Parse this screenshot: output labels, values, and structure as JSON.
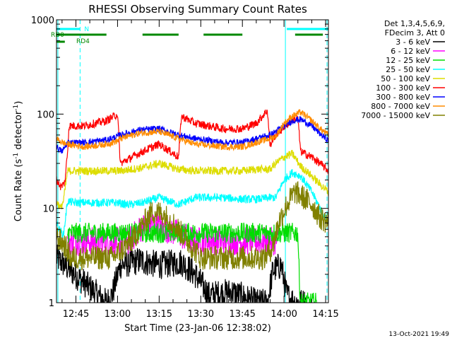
{
  "chart_data": {
    "type": "line",
    "title": "RHESSI Observing Summary Count Rates",
    "xlabel": "Start Time (23-Jan-06 12:38:02)",
    "ylabel_pre": "Count Rate (s",
    "ylabel_sup1": "-1",
    "ylabel_mid": " detector",
    "ylabel_sup2": "-1",
    "ylabel_post": ")",
    "yscale": "log",
    "xlim_minutes_after_1238": [
      0,
      98
    ],
    "ylim": [
      1,
      1000
    ],
    "ytick_labels": [
      {
        "value": 1,
        "label": "1"
      },
      {
        "value": 10,
        "label": "10"
      },
      {
        "value": 100,
        "label": "100"
      },
      {
        "value": 1000,
        "label": "1000"
      }
    ],
    "xtick_labels": [
      {
        "minute": 7,
        "label": "12:45"
      },
      {
        "minute": 22,
        "label": "13:00"
      },
      {
        "minute": 37,
        "label": "13:15"
      },
      {
        "minute": 52,
        "label": "13:30"
      },
      {
        "minute": 67,
        "label": "13:45"
      },
      {
        "minute": 82,
        "label": "14:00"
      },
      {
        "minute": 97,
        "label": "14:15"
      }
    ],
    "legend": {
      "placement": "right",
      "header": [
        "Det 1,3,4,5,6,9,",
        "FDecim 3, Att 0"
      ],
      "entries": [
        {
          "label": "3 - 6 keV",
          "color": "#000000"
        },
        {
          "label": "6 - 12 keV",
          "color": "#ff00ff"
        },
        {
          "label": "12 - 25 keV",
          "color": "#00dd00"
        },
        {
          "label": "25 - 50 keV",
          "color": "#00ffff"
        },
        {
          "label": "50 - 100 keV",
          "color": "#dddd00"
        },
        {
          "label": "100 - 300 keV",
          "color": "#ff0000"
        },
        {
          "label": "300 - 800 keV",
          "color": "#0000ff"
        },
        {
          "label": "800 - 7000 keV",
          "color": "#ff8c00"
        },
        {
          "label": "7000 - 15000 keV",
          "color": "#808000"
        }
      ]
    },
    "flags": [
      {
        "label": "N",
        "color": "#00ffff",
        "segments": [
          [
            0,
            8.5
          ],
          [
            83,
            98
          ]
        ],
        "level": 1
      },
      {
        "label": "RD0",
        "color": "#008800",
        "segments": [
          [
            0,
            18
          ],
          [
            31,
            44
          ],
          [
            53,
            67
          ],
          [
            86,
            96
          ]
        ],
        "level": 2
      },
      {
        "label": "RD4",
        "color": "#008800",
        "segments": [
          [
            0,
            3
          ]
        ],
        "level": 3
      }
    ],
    "vlines": [
      {
        "minute": 0.5,
        "color": "#00ffff",
        "style": "solid"
      },
      {
        "minute": 8.5,
        "color": "#00ffff",
        "style": "dashed"
      },
      {
        "minute": 82.5,
        "color": "#00ffff",
        "style": "solid"
      },
      {
        "minute": 97.5,
        "color": "#00ffff",
        "style": "dashed"
      }
    ],
    "series": [
      {
        "name": "3 - 6 keV",
        "color": "#000000",
        "noise": 0.35,
        "x": [
          0,
          18,
          20,
          23,
          30,
          37,
          45,
          50,
          55,
          63,
          66,
          69,
          72,
          76,
          78,
          81,
          83,
          86,
          90
        ],
        "y": [
          3,
          1,
          1.2,
          2.5,
          2.8,
          2.5,
          2.7,
          2,
          1.2,
          1.3,
          1.2,
          1.1,
          1,
          1,
          2.2,
          2.5,
          1.2,
          1,
          1
        ]
      },
      {
        "name": "6 - 12 keV",
        "color": "#ff00ff",
        "noise": 0.35,
        "x": [
          4,
          10,
          18,
          26,
          30,
          34,
          40,
          50,
          60,
          68,
          74,
          80
        ],
        "y": [
          4.5,
          4.5,
          4.5,
          4.5,
          6,
          7,
          6,
          4.5,
          4.5,
          4.5,
          4.5,
          4.5
        ]
      },
      {
        "name": "12 - 25 keV",
        "color": "#00dd00",
        "noise": 0.25,
        "x": [
          4,
          20,
          40,
          60,
          78,
          80,
          82,
          84,
          86,
          87,
          87.5,
          88,
          89,
          90,
          93,
          94
        ],
        "y": [
          5.5,
          5.5,
          5.5,
          5.5,
          5.5,
          5.5,
          5.5,
          5.5,
          5.5,
          5.5,
          1.8,
          1,
          1,
          1,
          1,
          1
        ]
      },
      {
        "name": "25 - 50 keV",
        "color": "#00ffff",
        "noise": 0.1,
        "x": [
          0,
          1,
          2.5,
          4,
          6,
          15,
          22,
          25,
          27,
          31,
          37,
          44,
          50,
          60,
          67,
          72,
          77,
          79,
          82,
          85,
          88,
          92,
          95,
          98
        ],
        "y": [
          7,
          6,
          5.2,
          12,
          11.5,
          11.5,
          11.5,
          11,
          11,
          11.5,
          13,
          11,
          13,
          13,
          12.5,
          12.5,
          13,
          13,
          20,
          24,
          22,
          15,
          10,
          7
        ]
      },
      {
        "name": "50 - 100 keV",
        "color": "#dddd00",
        "noise": 0.1,
        "x": [
          0,
          1.5,
          2.5,
          4,
          10,
          18,
          22,
          23,
          31,
          37,
          44,
          50,
          60,
          67,
          72,
          77,
          79,
          82,
          85,
          88,
          92,
          95,
          98
        ],
        "y": [
          12,
          10,
          12,
          25,
          25,
          25,
          25,
          25,
          27,
          30,
          26,
          25,
          25,
          25,
          26,
          26,
          30,
          35,
          38,
          28,
          22,
          18,
          15
        ]
      },
      {
        "name": "100 - 300 keV",
        "color": "#ff0000",
        "noise": 0.1,
        "x": [
          0,
          1.5,
          2.5,
          3,
          4,
          4.5,
          10,
          18,
          22,
          23,
          31,
          37,
          44,
          45,
          50,
          60,
          67,
          72,
          76,
          77,
          78,
          79,
          85,
          87,
          88,
          92,
          95,
          98
        ],
        "y": [
          20,
          17,
          18,
          19,
          40,
          75,
          75,
          85,
          100,
          30,
          40,
          48,
          35,
          95,
          80,
          70,
          70,
          80,
          110,
          45,
          55,
          60,
          88,
          90,
          40,
          35,
          30,
          25
        ]
      },
      {
        "name": "300 - 800 keV",
        "color": "#0000ff",
        "noise": 0.08,
        "x": [
          0,
          2,
          4,
          10,
          18,
          22,
          23,
          30,
          37,
          44,
          50,
          60,
          67,
          72,
          77,
          79,
          82,
          85,
          88,
          92,
          95,
          98
        ],
        "y": [
          45,
          40,
          50,
          50,
          53,
          58,
          60,
          68,
          70,
          60,
          55,
          50,
          50,
          55,
          60,
          65,
          75,
          85,
          88,
          75,
          62,
          52
        ]
      },
      {
        "name": "800 - 7000 keV",
        "color": "#ff8c00",
        "noise": 0.08,
        "x": [
          0,
          2,
          4,
          10,
          18,
          22,
          23,
          30,
          37,
          44,
          50,
          60,
          67,
          72,
          77,
          79,
          82,
          85,
          88,
          92,
          95,
          98
        ],
        "y": [
          55,
          50,
          48,
          45,
          48,
          52,
          55,
          63,
          65,
          55,
          48,
          45,
          45,
          50,
          55,
          58,
          80,
          95,
          105,
          85,
          70,
          60
        ]
      },
      {
        "name": "7000 - 15000 keV",
        "color": "#808000",
        "noise": 0.3,
        "x": [
          0,
          3,
          5,
          10,
          15,
          20,
          23,
          27,
          30,
          34,
          38,
          42,
          46,
          52,
          60,
          68,
          75,
          78,
          80,
          83,
          86,
          89,
          92,
          95,
          98
        ],
        "y": [
          5,
          4,
          3,
          3,
          3,
          3,
          3.5,
          4.5,
          6,
          9,
          9,
          7,
          5,
          3,
          3,
          3,
          3,
          4,
          7,
          11,
          15,
          13,
          11,
          8,
          7
        ]
      }
    ]
  },
  "footer_timestamp": "13-Oct-2021 19:49"
}
